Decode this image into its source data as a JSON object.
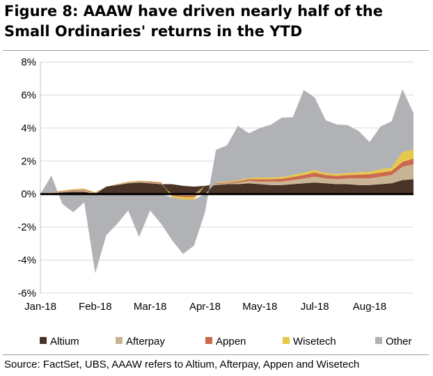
{
  "title": "Figure 8: AAAW have driven nearly half of the Small Ordinaries' returns in the YTD",
  "source": "Source:  FactSet, UBS, AAAW refers to Altium, Afterpay, Appen and Wisetech",
  "chart_data": {
    "type": "area",
    "stacked": true,
    "title": "Figure 8: AAAW have driven nearly half of the Small Ordinaries' returns in the YTD",
    "xlabel": "",
    "ylabel": "",
    "ylim": [
      -6,
      8
    ],
    "yticks": [
      "8%",
      "6%",
      "4%",
      "2%",
      "0%",
      "-2%",
      "-4%",
      "-6%"
    ],
    "ytick_values": [
      8,
      6,
      4,
      2,
      0,
      -2,
      -4,
      -6
    ],
    "xtick_labels": [
      "Jan-18",
      "Feb-18",
      "Mar-18",
      "Apr-18",
      "May-18",
      "Jul-18",
      "Aug-18"
    ],
    "xtick_dates": [
      "2018-01-01",
      "2018-02-05",
      "2018-03-12",
      "2018-04-16",
      "2018-05-21",
      "2018-06-25",
      "2018-07-30"
    ],
    "grid": "horizontal",
    "legend_position": "bottom",
    "colors": {
      "Altium": "#4a3327",
      "Afterpay": "#c9b596",
      "Appen": "#c96a4e",
      "Wisetech": "#e6c84a",
      "Other": "#b1b2b5"
    },
    "x": [
      "2018-01-01",
      "2018-01-08",
      "2018-01-15",
      "2018-01-22",
      "2018-01-29",
      "2018-02-05",
      "2018-02-12",
      "2018-02-19",
      "2018-02-26",
      "2018-03-05",
      "2018-03-12",
      "2018-03-19",
      "2018-03-26",
      "2018-04-02",
      "2018-04-09",
      "2018-04-16",
      "2018-04-23",
      "2018-04-30",
      "2018-05-07",
      "2018-05-14",
      "2018-05-21",
      "2018-05-28",
      "2018-06-04",
      "2018-06-11",
      "2018-06-18",
      "2018-06-25",
      "2018-07-02",
      "2018-07-09",
      "2018-07-16",
      "2018-07-23",
      "2018-07-30",
      "2018-08-06",
      "2018-08-13",
      "2018-08-20",
      "2018-08-27"
    ],
    "series": [
      {
        "name": "Altium",
        "values": [
          0.0,
          0.05,
          0.1,
          0.15,
          0.15,
          0.0,
          0.45,
          0.55,
          0.65,
          0.7,
          0.65,
          0.6,
          0.6,
          0.5,
          0.45,
          0.5,
          0.55,
          0.6,
          0.6,
          0.65,
          0.6,
          0.55,
          0.55,
          0.6,
          0.65,
          0.7,
          0.65,
          0.6,
          0.6,
          0.55,
          0.55,
          0.6,
          0.65,
          0.85,
          0.9
        ]
      },
      {
        "name": "Afterpay",
        "values": [
          0.0,
          0.03,
          0.05,
          0.05,
          0.08,
          0.05,
          0.0,
          0.02,
          0.05,
          0.05,
          0.05,
          0.05,
          -0.05,
          -0.1,
          -0.1,
          0.0,
          0.05,
          0.05,
          0.1,
          0.15,
          0.15,
          0.2,
          0.2,
          0.25,
          0.3,
          0.35,
          0.3,
          0.3,
          0.35,
          0.4,
          0.4,
          0.45,
          0.5,
          0.8,
          0.9
        ]
      },
      {
        "name": "Appen",
        "values": [
          0.0,
          0.02,
          0.03,
          0.05,
          0.05,
          0.03,
          0.0,
          0.02,
          0.02,
          0.03,
          0.05,
          0.05,
          -0.05,
          -0.08,
          -0.08,
          0.0,
          0.05,
          0.05,
          0.08,
          0.1,
          0.15,
          0.15,
          0.18,
          0.18,
          0.2,
          0.25,
          0.2,
          0.2,
          0.2,
          0.22,
          0.25,
          0.25,
          0.25,
          0.3,
          0.35
        ]
      },
      {
        "name": "Wisetech",
        "values": [
          0.0,
          0.02,
          0.03,
          0.05,
          0.05,
          0.03,
          0.0,
          0.02,
          0.03,
          0.03,
          0.03,
          0.02,
          -0.1,
          -0.15,
          -0.15,
          0.0,
          0.03,
          0.05,
          0.05,
          0.08,
          0.1,
          0.1,
          0.1,
          0.12,
          0.15,
          0.15,
          0.12,
          0.12,
          0.12,
          0.15,
          0.15,
          0.2,
          0.2,
          0.6,
          0.55
        ]
      },
      {
        "name": "Other",
        "values": [
          0.0,
          1.0,
          -0.6,
          -1.1,
          -0.5,
          -4.8,
          -2.5,
          -1.8,
          -1.0,
          -2.6,
          -1.0,
          -1.8,
          -2.6,
          -3.3,
          -2.8,
          -1.1,
          2.0,
          2.2,
          3.3,
          2.7,
          3.0,
          3.2,
          3.6,
          3.5,
          5.0,
          4.4,
          3.2,
          3.0,
          2.9,
          2.5,
          1.8,
          2.6,
          2.8,
          3.8,
          2.2
        ]
      }
    ]
  },
  "legend": [
    {
      "label": "Altium",
      "color": "#4a3327"
    },
    {
      "label": "Afterpay",
      "color": "#c9b596"
    },
    {
      "label": "Appen",
      "color": "#c96a4e"
    },
    {
      "label": "Wisetech",
      "color": "#e6c84a"
    },
    {
      "label": "Other",
      "color": "#b1b2b5"
    }
  ]
}
